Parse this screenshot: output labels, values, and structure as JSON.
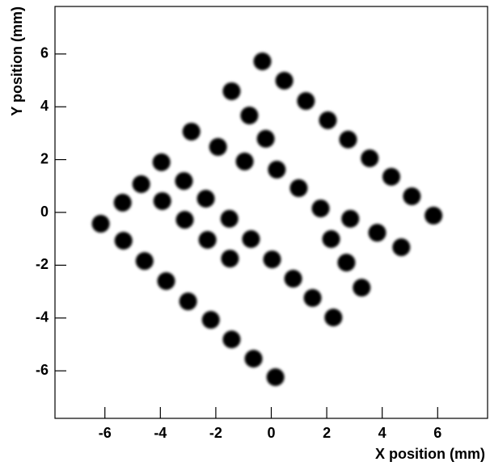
{
  "chart_data": {
    "type": "scatter",
    "x_label": "X position (mm)",
    "y_label": "Y position (mm)",
    "xlim": [
      -7.8,
      7.8
    ],
    "ylim": [
      -7.8,
      7.8
    ],
    "xticks": [
      -6,
      -4,
      -2,
      0,
      2,
      4,
      6
    ],
    "yticks": [
      -6,
      -4,
      -2,
      0,
      2,
      4,
      6
    ],
    "series": [
      {
        "color": "#000000",
        "x": [
          -0.32,
          0.47,
          1.25,
          2.04,
          2.77,
          3.55,
          4.33,
          5.07,
          5.85,
          -1.43,
          -0.79,
          -0.2,
          0.2,
          0.99,
          1.78,
          2.85,
          3.82,
          4.69,
          -2.88,
          -1.92,
          -0.96,
          -3.96,
          -3.15,
          -2.36,
          -1.51,
          -0.73,
          0.03,
          0.79,
          1.49,
          2.24,
          -4.69,
          -3.93,
          -3.12,
          -2.3,
          -1.49,
          -5.36,
          -6.15,
          -5.33,
          -4.57,
          -3.79,
          -3.0,
          -2.18,
          -1.43,
          -0.64,
          0.15,
          2.16,
          2.71,
          3.26
        ],
        "values": [
          5.72,
          4.99,
          4.22,
          3.49,
          2.76,
          2.05,
          1.35,
          0.61,
          -0.12,
          4.59,
          3.67,
          2.79,
          1.62,
          0.92,
          0.15,
          -0.24,
          -0.77,
          -1.32,
          3.06,
          2.48,
          1.93,
          1.9,
          1.19,
          0.52,
          -0.24,
          -1.01,
          -1.78,
          -2.51,
          -3.24,
          -3.98,
          1.07,
          0.43,
          -0.28,
          -1.04,
          -1.75,
          0.37,
          -0.43,
          -1.07,
          -1.84,
          -2.6,
          -3.37,
          -4.07,
          -4.81,
          -5.54,
          -6.24,
          -1.01,
          -1.9,
          -2.85
        ]
      }
    ]
  }
}
